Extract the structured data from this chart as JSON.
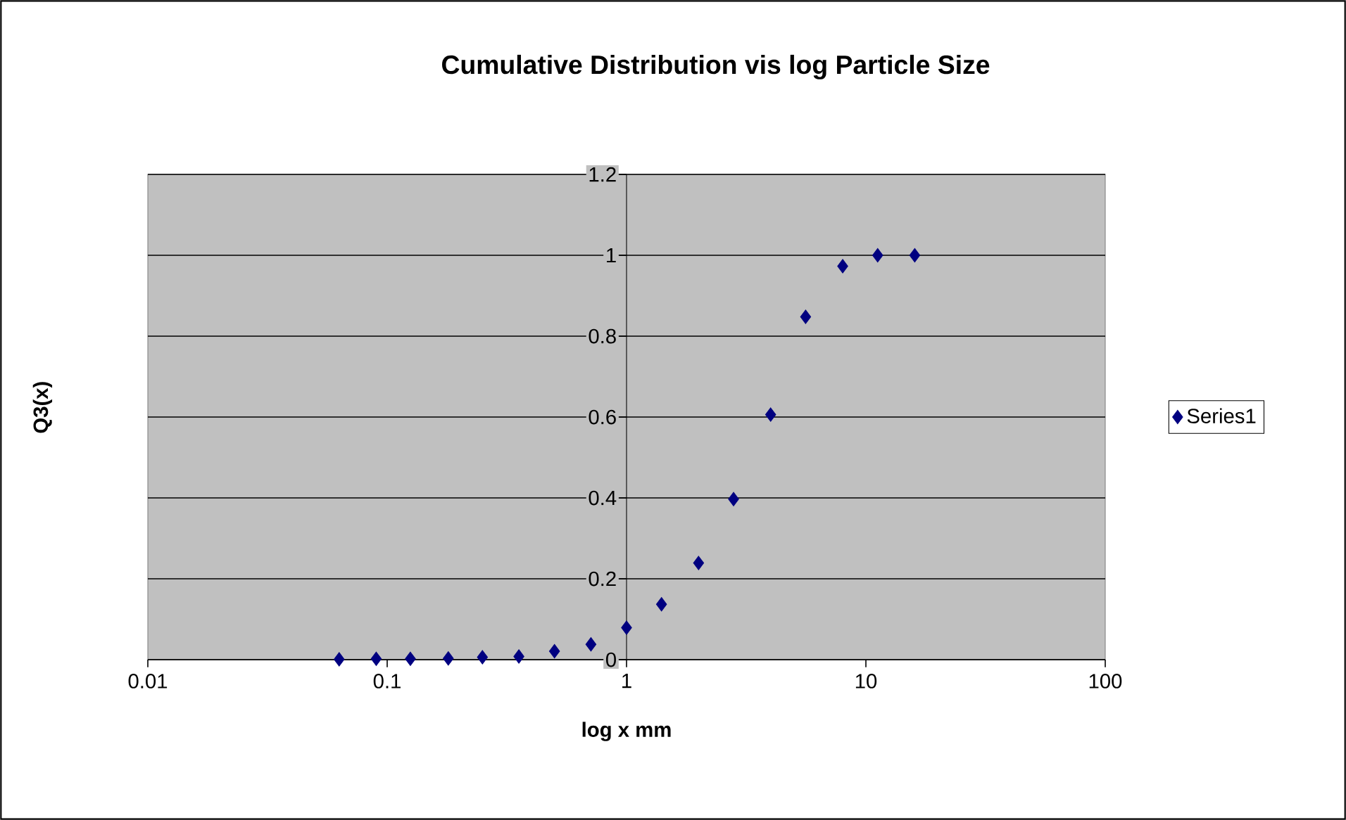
{
  "chart_data": {
    "type": "scatter",
    "title": "Cumulative Distribution vis log Particle Size",
    "xlabel": "log x mm",
    "ylabel": "Q3(x)",
    "x": [
      0.063,
      0.09,
      0.125,
      0.18,
      0.25,
      0.355,
      0.5,
      0.71,
      1,
      1.4,
      2,
      2.8,
      4,
      5.6,
      8,
      11.2,
      16
    ],
    "series": [
      {
        "name": "Series1",
        "color": "#000080",
        "values": [
          0.001,
          0.002,
          0.002,
          0.003,
          0.006,
          0.008,
          0.021,
          0.038,
          0.079,
          0.137,
          0.239,
          0.397,
          0.606,
          0.848,
          0.973,
          1,
          1
        ]
      }
    ],
    "xlim": [
      0.01,
      100
    ],
    "ylim": [
      0,
      1.2
    ],
    "xticks": [
      0.01,
      0.1,
      1,
      10,
      100
    ],
    "yticks": [
      0,
      0.2,
      0.4,
      0.6,
      0.8,
      1,
      1.2
    ],
    "log": "x",
    "grid": "y",
    "legend": "right",
    "marker": "diamond"
  }
}
